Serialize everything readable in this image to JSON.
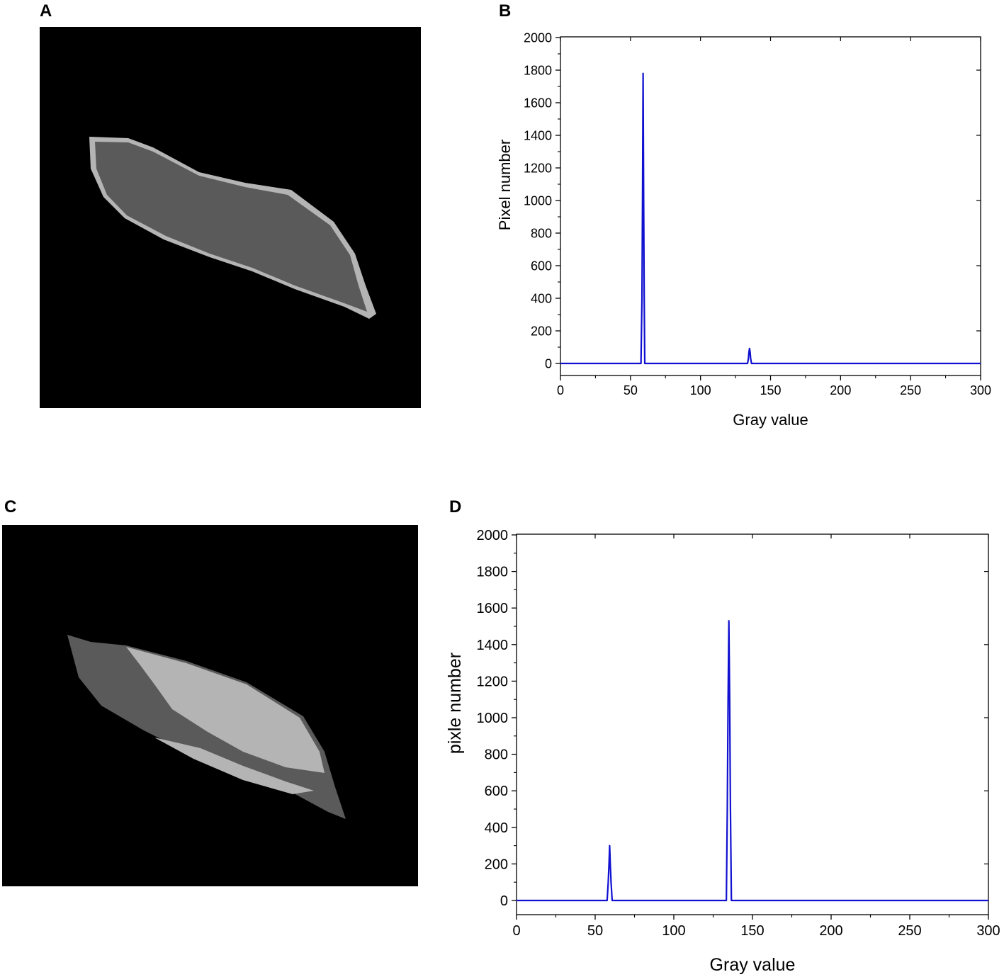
{
  "panels": {
    "a": {
      "letter": "A"
    },
    "b": {
      "letter": "B"
    },
    "c": {
      "letter": "C"
    },
    "d": {
      "letter": "D"
    }
  },
  "colors": {
    "line": "#1010d0",
    "image_bg": "#000000",
    "shape_dark": "#5a5a5a",
    "shape_light": "#b4b4b4"
  },
  "chart_data": [
    {
      "panel": "B",
      "type": "line",
      "xlabel": "Gray value",
      "ylabel": "Pixel number",
      "xlim": [
        0,
        300
      ],
      "ylim": [
        -80,
        2000
      ],
      "xticks": [
        0,
        50,
        100,
        150,
        200,
        250,
        300
      ],
      "yticks": [
        0,
        200,
        400,
        600,
        800,
        1000,
        1200,
        1400,
        1600,
        1800,
        2000
      ],
      "grid": false,
      "series": [
        {
          "x": [
            0,
            57.5,
            58.2,
            58.6,
            59,
            59.4,
            59.8,
            60.2,
            60.6,
            133.6,
            134.2,
            134.6,
            135,
            135.4,
            135.8,
            136.4,
            300
          ],
          "y": [
            0,
            0,
            400,
            1000,
            1780,
            1000,
            400,
            0,
            0,
            0,
            30,
            70,
            92,
            70,
            30,
            0,
            0
          ]
        }
      ]
    },
    {
      "panel": "D",
      "type": "line",
      "xlabel": "Gray value",
      "ylabel": "pixle number",
      "xlim": [
        0,
        300
      ],
      "ylim": [
        -80,
        2000
      ],
      "xticks": [
        0,
        50,
        100,
        150,
        200,
        250,
        300
      ],
      "yticks": [
        0,
        200,
        400,
        600,
        800,
        1000,
        1200,
        1400,
        1600,
        1800,
        2000
      ],
      "grid": false,
      "series": [
        {
          "x": [
            0,
            57.6,
            58.3,
            58.8,
            59.2,
            59.6,
            60.1,
            60.8,
            133.4,
            134.0,
            134.5,
            135,
            135.5,
            136.0,
            136.6,
            300
          ],
          "y": [
            0,
            0,
            100,
            200,
            300,
            200,
            100,
            0,
            0,
            500,
            1100,
            1530,
            1100,
            500,
            0,
            0
          ]
        }
      ]
    }
  ]
}
